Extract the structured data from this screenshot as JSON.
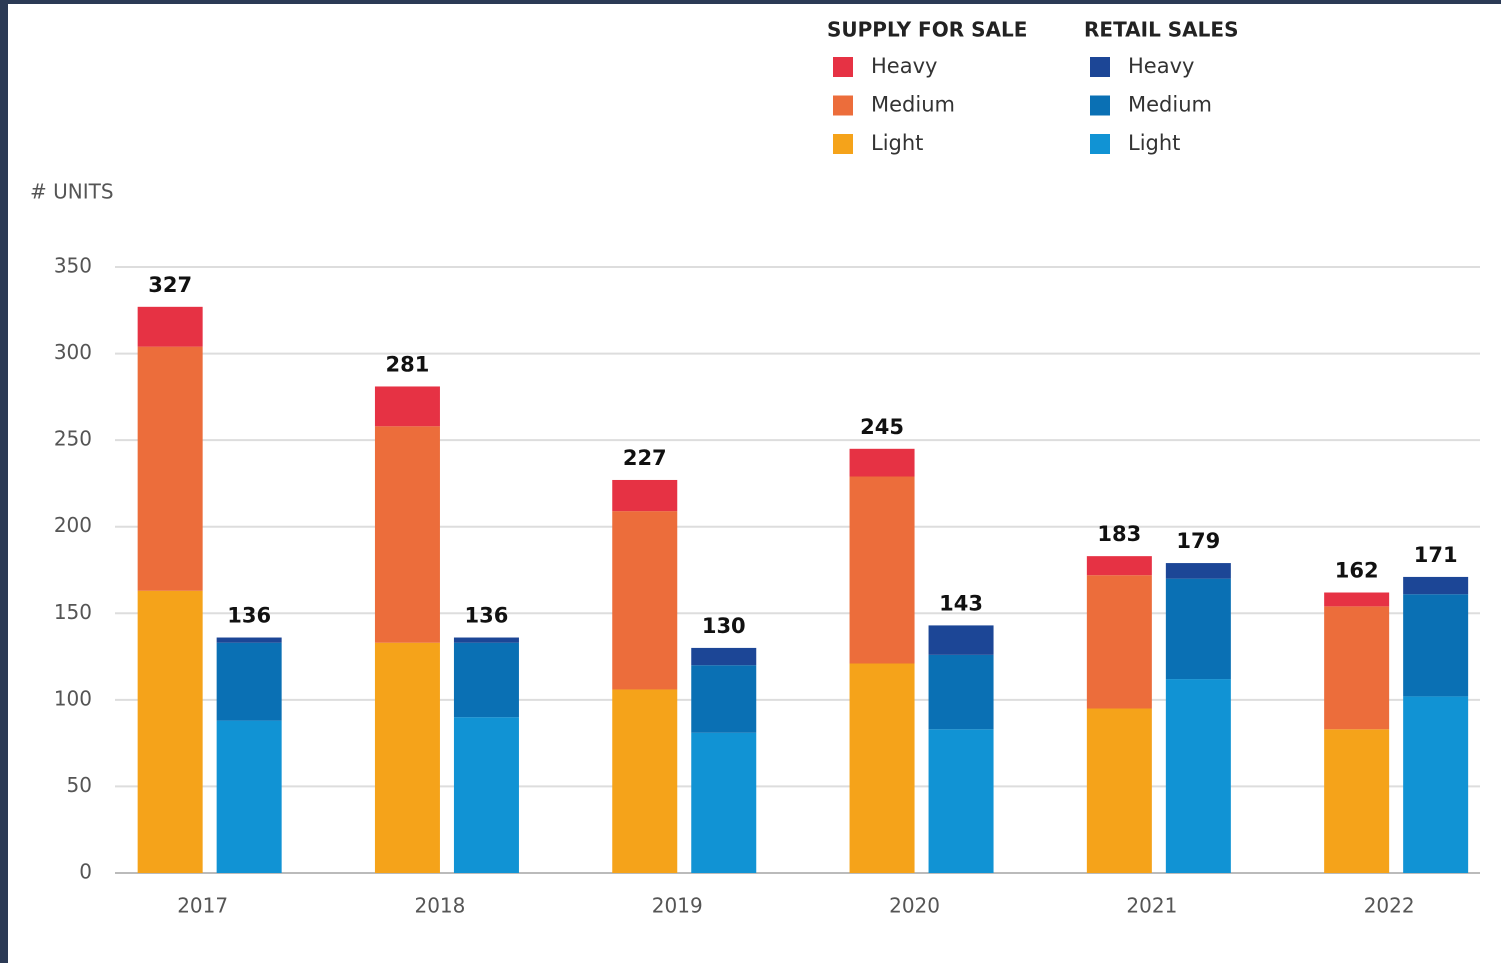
{
  "chart_data": {
    "type": "stacked_grouped_bar",
    "y_label": "# UNITS",
    "categories": [
      "2017",
      "2018",
      "2019",
      "2020",
      "2021",
      "2022"
    ],
    "ylim": [
      0,
      350
    ],
    "yticks": [
      0,
      50,
      100,
      150,
      200,
      250,
      300,
      350
    ],
    "grid": true,
    "groups": [
      {
        "name": "SUPPLY FOR SALE",
        "totals": [
          327,
          281,
          227,
          245,
          183,
          162
        ],
        "series": [
          {
            "name": "Heavy",
            "color": "#e63244",
            "values": [
              23,
              23,
              18,
              16,
              11,
              8
            ]
          },
          {
            "name": "Medium",
            "color": "#ec6d3b",
            "values": [
              141,
              125,
              103,
              108,
              77,
              71
            ]
          },
          {
            "name": "Light",
            "color": "#f5a31a",
            "values": [
              163,
              133,
              106,
              121,
              95,
              83
            ]
          }
        ]
      },
      {
        "name": "RETAIL SALES",
        "totals": [
          136,
          136,
          130,
          143,
          179,
          171
        ],
        "series": [
          {
            "name": "Heavy",
            "color": "#1c4696",
            "values": [
              3,
              3,
              10,
              17,
              9,
              10
            ]
          },
          {
            "name": "Medium",
            "color": "#0a70b4",
            "values": [
              45,
              43,
              39,
              43,
              58,
              59
            ]
          },
          {
            "name": "Light",
            "color": "#1193d4",
            "values": [
              88,
              90,
              81,
              83,
              112,
              102
            ]
          }
        ]
      }
    ]
  }
}
